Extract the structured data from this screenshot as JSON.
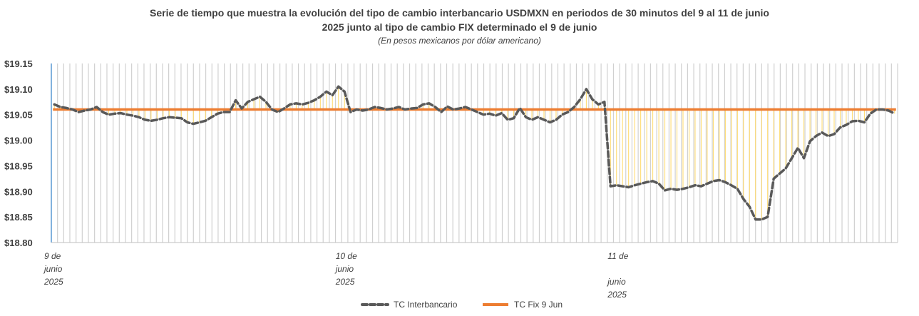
{
  "chart_data": {
    "type": "line",
    "title_line1": "Serie de tiempo que muestra la evolución del tipo de cambio interbancario USDMXN  en periodos de 30 minutos del 9 al 11 de junio",
    "title_line2": "2025 junto al tipo de cambio FIX determinado el 9 de junio",
    "subtitle": "(En pesos mexicanos por dólar americano)",
    "y_tick_labels": [
      "$19.15",
      "$19.10",
      "$19.05",
      "$19.00",
      "$18.95",
      "$18.90",
      "$18.85",
      "$18.80"
    ],
    "ylim": [
      18.8,
      19.15
    ],
    "x_labels": [
      {
        "lines": [
          "9 de",
          "junio",
          "2025"
        ]
      },
      {
        "lines": [
          "10 de",
          "junio",
          "2025"
        ]
      },
      {
        "lines": [
          "11 de",
          "",
          "junio",
          "2025"
        ]
      }
    ],
    "fix_value": 19.06,
    "series": [
      {
        "name": "TC Interbancario",
        "color": "#595959",
        "values": [
          19.07,
          19.065,
          19.063,
          19.06,
          19.055,
          19.058,
          19.06,
          19.065,
          19.055,
          19.05,
          19.052,
          19.053,
          19.05,
          19.048,
          19.045,
          19.04,
          19.038,
          19.04,
          19.043,
          19.045,
          19.044,
          19.043,
          19.035,
          19.032,
          19.035,
          19.038,
          19.045,
          19.052,
          19.055,
          19.055,
          19.078,
          19.062,
          19.075,
          19.08,
          19.085,
          19.075,
          19.06,
          19.055,
          19.062,
          19.07,
          19.072,
          19.07,
          19.073,
          19.078,
          19.085,
          19.095,
          19.088,
          19.105,
          19.095,
          19.055,
          19.06,
          19.058,
          19.06,
          19.065,
          19.063,
          19.06,
          19.062,
          19.065,
          19.06,
          19.062,
          19.063,
          19.07,
          19.072,
          19.065,
          19.055,
          19.066,
          19.06,
          19.062,
          19.065,
          19.06,
          19.055,
          19.05,
          19.052,
          19.048,
          19.053,
          19.04,
          19.043,
          19.063,
          19.045,
          19.04,
          19.045,
          19.04,
          19.035,
          19.04,
          19.05,
          19.055,
          19.065,
          19.08,
          19.1,
          19.08,
          19.07,
          19.075,
          18.91,
          18.912,
          18.91,
          18.908,
          18.912,
          18.915,
          18.918,
          18.92,
          18.915,
          18.902,
          18.905,
          18.903,
          18.905,
          18.908,
          18.912,
          18.91,
          18.915,
          18.92,
          18.922,
          18.918,
          18.912,
          18.905,
          18.885,
          18.87,
          18.845,
          18.845,
          18.85,
          18.925,
          18.935,
          18.945,
          18.965,
          18.985,
          18.965,
          18.998,
          19.008,
          19.015,
          19.008,
          19.012,
          19.025,
          19.03,
          19.037,
          19.038,
          19.035,
          19.052,
          19.06,
          19.06,
          19.058,
          19.052
        ]
      },
      {
        "name": "TC Fix 9 Jun",
        "color": "#ed7d31"
      }
    ],
    "grid_vertical": true,
    "drop_lines_color": "#ffd966",
    "legend_position": "bottom"
  }
}
